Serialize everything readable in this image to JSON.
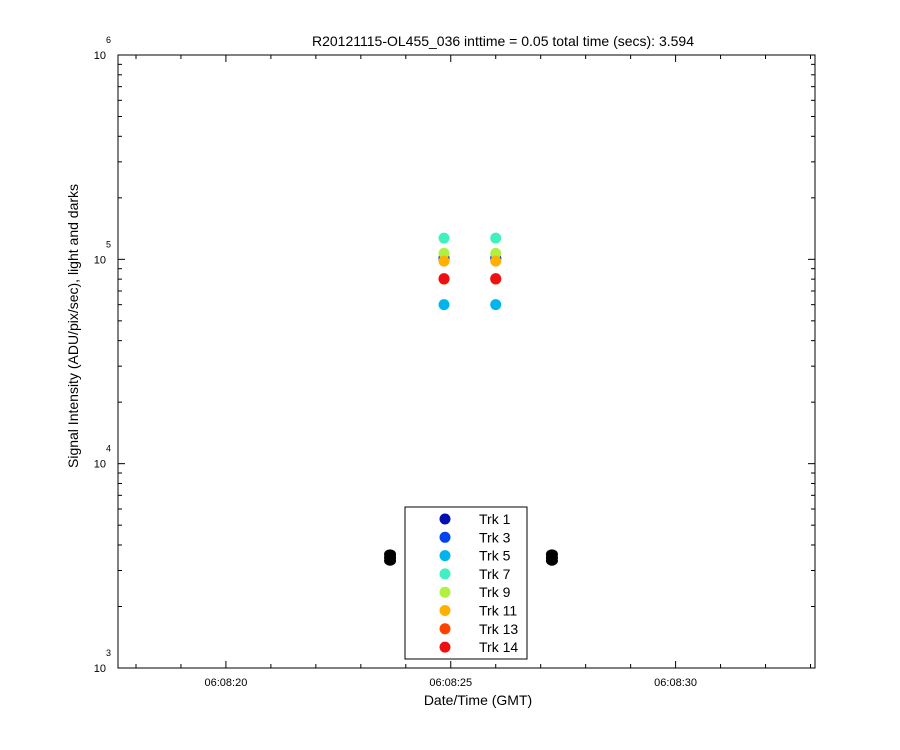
{
  "chart_data": {
    "type": "scatter",
    "title": "R20121115-OL455_036 inttime = 0.05 total time (secs): 3.594",
    "xlabel": "Date/Time (GMT)",
    "ylabel": "Signal Intensity (ADU/pix/sec), light and darks",
    "y_scale": "log",
    "ylim": [
      1000,
      1000000
    ],
    "xlim": [
      "06:08:17.6",
      "06:08:33.1"
    ],
    "x_ticks": [
      "06:08:20",
      "06:08:25",
      "06:08:30"
    ],
    "y_ticks": [
      {
        "value": 1000,
        "base": "10",
        "exp": "3"
      },
      {
        "value": 10000,
        "base": "10",
        "exp": "4"
      },
      {
        "value": 100000,
        "base": "10",
        "exp": "5"
      },
      {
        "value": 1000000,
        "base": "10",
        "exp": "6"
      }
    ],
    "grid": false,
    "legend_position": "bottom-center",
    "series": [
      {
        "name": "Trk 1",
        "color": "#0010b0",
        "x": [
          "06:08:24.85",
          "06:08:26.0"
        ],
        "y": [
          100500,
          100500
        ]
      },
      {
        "name": "Trk 3",
        "color": "#0044ee",
        "x": [
          "06:08:24.85",
          "06:08:26.0"
        ],
        "y": [
          101500,
          101500
        ]
      },
      {
        "name": "Trk 5",
        "color": "#00b4ee",
        "x": [
          "06:08:24.85",
          "06:08:26.0"
        ],
        "y": [
          60000,
          60000
        ]
      },
      {
        "name": "Trk 7",
        "color": "#40f0c0",
        "x": [
          "06:08:24.85",
          "06:08:26.0"
        ],
        "y": [
          127000,
          127000
        ]
      },
      {
        "name": "Trk 9",
        "color": "#b0f040",
        "x": [
          "06:08:24.85",
          "06:08:26.0"
        ],
        "y": [
          107000,
          107000
        ]
      },
      {
        "name": "Trk 11",
        "color": "#ffb000",
        "x": [
          "06:08:24.85",
          "06:08:26.0"
        ],
        "y": [
          98000,
          98000
        ]
      },
      {
        "name": "Trk 13",
        "color": "#ff4400",
        "x": [
          "06:08:24.85",
          "06:08:26.0"
        ],
        "y": [
          80000,
          80000
        ]
      },
      {
        "name": "Trk 14",
        "color": "#ee1010",
        "x": [
          "06:08:24.85",
          "06:08:26.0"
        ],
        "y": [
          80500,
          80500
        ]
      }
    ],
    "darks": {
      "color": "#000000",
      "x": [
        "06:08:23.65",
        "06:08:23.65",
        "06:08:23.65",
        "06:08:27.25",
        "06:08:27.25",
        "06:08:27.25"
      ],
      "y": [
        3350,
        3470,
        3600,
        3350,
        3470,
        3600
      ]
    }
  }
}
